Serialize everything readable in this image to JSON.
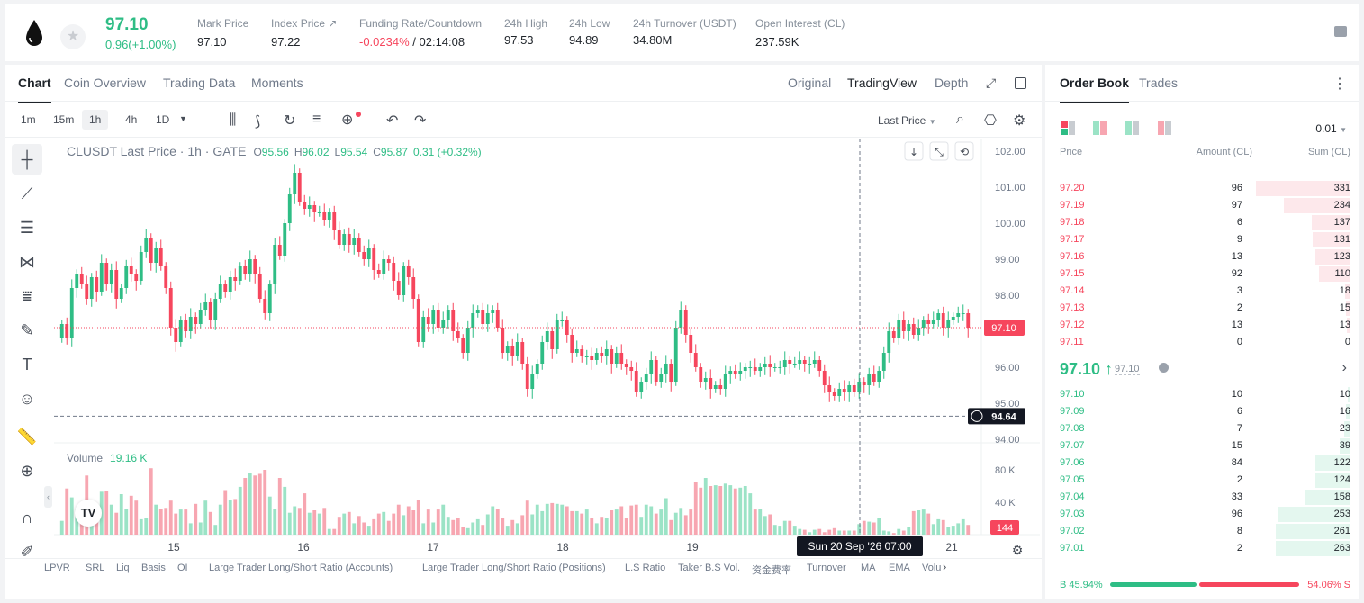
{
  "header": {
    "last_price": "97.10",
    "change": "0.96(+1.00%)",
    "stats": [
      {
        "label": "Mark Price",
        "value": "97.10",
        "color": "#1e2329"
      },
      {
        "label": "Index Price ↗",
        "value": "97.22",
        "color": "#1e2329"
      },
      {
        "label": "Funding Rate/Countdown",
        "value": "-0.0234%",
        "value2": " / 02:14:08",
        "color": "#f6465d"
      },
      {
        "label": "24h High",
        "value": "97.53",
        "color": "#1e2329"
      },
      {
        "label": "24h Low",
        "value": "94.89",
        "color": "#1e2329"
      },
      {
        "label": "24h Turnover (USDT)",
        "value": "34.80M",
        "color": "#1e2329"
      },
      {
        "label": "Open Interest (CL)",
        "value": "237.59K",
        "color": "#1e2329"
      }
    ]
  },
  "chart_panel": {
    "tabs": [
      "Chart",
      "Coin Overview",
      "Trading Data",
      "Moments"
    ],
    "view_tabs": [
      "Original",
      "TradingView",
      "Depth"
    ],
    "timeframes": [
      "1m",
      "15m",
      "1h",
      "4h",
      "1D"
    ],
    "active_timeframe": "1h",
    "price_type": "Last Price",
    "legend": {
      "symbol": "CLUSDT Last Price · 1h · GATE",
      "o_label": "O",
      "o": "95.56",
      "h_label": "H",
      "h": "96.02",
      "l_label": "L",
      "l": "95.54",
      "c_label": "C",
      "c": "95.87",
      "chg": "0.31 (+0.32%)"
    },
    "volume_label": "Volume",
    "volume_value": "19.16 K",
    "crosshair_price": "94.64",
    "current_price_tag": "97.10",
    "volume_tag": "144",
    "crosshair_time": "Sun 20 Sep '26   07:00",
    "bottom_indicators": [
      "LPVR",
      "SRL",
      "Liq",
      "Basis",
      "OI",
      "Large Trader Long/Short Ratio (Accounts)",
      "Large Trader Long/Short Ratio (Positions)",
      "L.S Ratio",
      "Taker B.S Vol.",
      "资金费率",
      "Turnover",
      "MA",
      "EMA",
      "Volu"
    ]
  },
  "chart_data": {
    "type": "candlestick",
    "y_ticks": [
      "102.00",
      "101.00",
      "100.00",
      "99.00",
      "98.00",
      "97.00",
      "96.00",
      "95.00",
      "94.00"
    ],
    "ylim": [
      94.0,
      102.0
    ],
    "x_ticks": [
      "15",
      "16",
      "17",
      "18",
      "19",
      "20",
      "21"
    ],
    "volume_ticks": [
      "80 K",
      "40 K"
    ],
    "volume_max": 100000,
    "colors": {
      "up": "#2ebd85",
      "down": "#f6465d",
      "up_vol": "#9be3c6",
      "down_vol": "#f7a6b1"
    },
    "closes": [
      97.2,
      96.8,
      98.2,
      98.6,
      98.3,
      97.9,
      98.5,
      98.1,
      98.9,
      98.3,
      98.7,
      97.9,
      98.2,
      98.8,
      98.6,
      98.4,
      99.2,
      99.6,
      98.9,
      99.3,
      98.8,
      98.2,
      97.1,
      96.7,
      97.3,
      97.0,
      97.4,
      97.2,
      97.6,
      97.8,
      97.3,
      97.9,
      98.3,
      98.1,
      98.5,
      98.4,
      98.8,
      98.6,
      99.0,
      98.6,
      97.9,
      97.5,
      98.3,
      99.4,
      99.1,
      100.0,
      100.8,
      101.4,
      100.6,
      100.4,
      100.5,
      100.3,
      100.3,
      100.1,
      100.3,
      99.8,
      99.4,
      99.7,
      99.4,
      99.6,
      99.2,
      99.0,
      99.3,
      98.7,
      98.6,
      99.0,
      98.9,
      98.4,
      98.0,
      98.8,
      98.5,
      97.9,
      96.7,
      97.4,
      97.2,
      97.6,
      97.1,
      97.3,
      97.6,
      97.0,
      96.8,
      96.4,
      97.1,
      97.5,
      97.6,
      97.2,
      97.5,
      97.6,
      97.1,
      96.4,
      96.6,
      96.3,
      96.7,
      96.1,
      95.4,
      95.8,
      96.1,
      96.7,
      97.0,
      96.5,
      97.3,
      97.3,
      96.9,
      96.4,
      96.5,
      96.3,
      96.3,
      96.2,
      96.4,
      96.3,
      96.5,
      96.1,
      96.4,
      96.1,
      96.0,
      95.9,
      95.3,
      95.6,
      95.8,
      96.2,
      95.6,
      95.8,
      96.1,
      95.6,
      97.1,
      97.6,
      96.9,
      96.4,
      96.0,
      95.6,
      95.7,
      95.4,
      95.5,
      95.4,
      95.8,
      95.9,
      95.8,
      95.9,
      96.0,
      96.0,
      95.9,
      96.0,
      96.1,
      96.0,
      96.0,
      96.0,
      96.2,
      96.1,
      96.1,
      96.2,
      96.1,
      96.1,
      96.2,
      95.9,
      95.5,
      95.3,
      95.2,
      95.4,
      95.3,
      95.5,
      95.3,
      95.6,
      95.5,
      95.8,
      95.6,
      95.9,
      96.4,
      97.0,
      96.8,
      97.3,
      97.0,
      97.2,
      96.9,
      97.1,
      97.3,
      97.2,
      97.3,
      97.5,
      97.1,
      97.3,
      97.4,
      97.5,
      97.5,
      97.1
    ],
    "volumes": [
      17,
      57,
      46,
      32,
      37,
      73,
      42,
      37,
      53,
      54,
      37,
      27,
      50,
      32,
      48,
      42,
      19,
      21,
      82,
      37,
      32,
      33,
      42,
      26,
      31,
      31,
      14,
      38,
      15,
      42,
      28,
      12,
      37,
      55,
      43,
      44,
      59,
      70,
      76,
      73,
      75,
      80,
      47,
      32,
      70,
      59,
      27,
      35,
      33,
      51,
      27,
      30,
      26,
      33,
      7,
      7,
      22,
      26,
      28,
      14,
      23,
      15,
      11,
      19,
      26,
      28,
      17,
      26,
      37,
      24,
      35,
      30,
      43,
      14,
      31,
      15,
      31,
      37,
      22,
      18,
      21,
      10,
      8,
      15,
      19,
      12,
      25,
      35,
      32,
      20,
      11,
      18,
      14,
      24,
      42,
      25,
      37,
      29,
      38,
      39,
      38,
      37,
      35,
      29,
      29,
      26,
      31,
      20,
      14,
      22,
      21,
      30,
      31,
      35,
      21,
      36,
      37,
      22,
      37,
      35,
      26,
      31,
      45,
      18,
      27,
      33,
      24,
      31,
      65,
      58,
      70,
      60,
      61,
      60,
      63,
      61,
      57,
      58,
      60,
      51,
      31,
      32,
      23,
      25,
      12,
      11,
      17,
      17,
      11,
      7,
      6,
      3,
      6,
      7,
      3,
      6,
      8,
      5,
      5,
      5,
      5,
      13,
      17,
      16,
      15,
      20,
      5,
      4,
      2,
      7,
      5,
      9,
      29,
      30,
      31,
      26,
      13,
      19,
      18,
      10,
      11,
      14,
      19,
      12,
      11,
      9,
      8
    ]
  },
  "order_book": {
    "tabs": [
      "Order Book",
      "Trades"
    ],
    "precision": "0.01",
    "headers": [
      "Price",
      "Amount (CL)",
      "Sum (CL)"
    ],
    "asks": [
      {
        "price": "97.20",
        "amount": "96",
        "sum": "331"
      },
      {
        "price": "97.19",
        "amount": "97",
        "sum": "234"
      },
      {
        "price": "97.18",
        "amount": "6",
        "sum": "137"
      },
      {
        "price": "97.17",
        "amount": "9",
        "sum": "131"
      },
      {
        "price": "97.16",
        "amount": "13",
        "sum": "123"
      },
      {
        "price": "97.15",
        "amount": "92",
        "sum": "110"
      },
      {
        "price": "97.14",
        "amount": "3",
        "sum": "18"
      },
      {
        "price": "97.13",
        "amount": "2",
        "sum": "15"
      },
      {
        "price": "97.12",
        "amount": "13",
        "sum": "13"
      },
      {
        "price": "97.11",
        "amount": "0",
        "sum": "0"
      }
    ],
    "mid_price": "97.10 ↑",
    "mid_ref": "97.10",
    "bids": [
      {
        "price": "97.10",
        "amount": "10",
        "sum": "10"
      },
      {
        "price": "97.09",
        "amount": "6",
        "sum": "16"
      },
      {
        "price": "97.08",
        "amount": "7",
        "sum": "23"
      },
      {
        "price": "97.07",
        "amount": "15",
        "sum": "39"
      },
      {
        "price": "97.06",
        "amount": "84",
        "sum": "122"
      },
      {
        "price": "97.05",
        "amount": "2",
        "sum": "124"
      },
      {
        "price": "97.04",
        "amount": "33",
        "sum": "158"
      },
      {
        "price": "97.03",
        "amount": "96",
        "sum": "253"
      },
      {
        "price": "97.02",
        "amount": "8",
        "sum": "261"
      },
      {
        "price": "97.01",
        "amount": "2",
        "sum": "263"
      }
    ],
    "buy_ratio_label": "B 45.94%",
    "sell_ratio_label": "54.06% S",
    "buy_ratio": 0.4594
  }
}
